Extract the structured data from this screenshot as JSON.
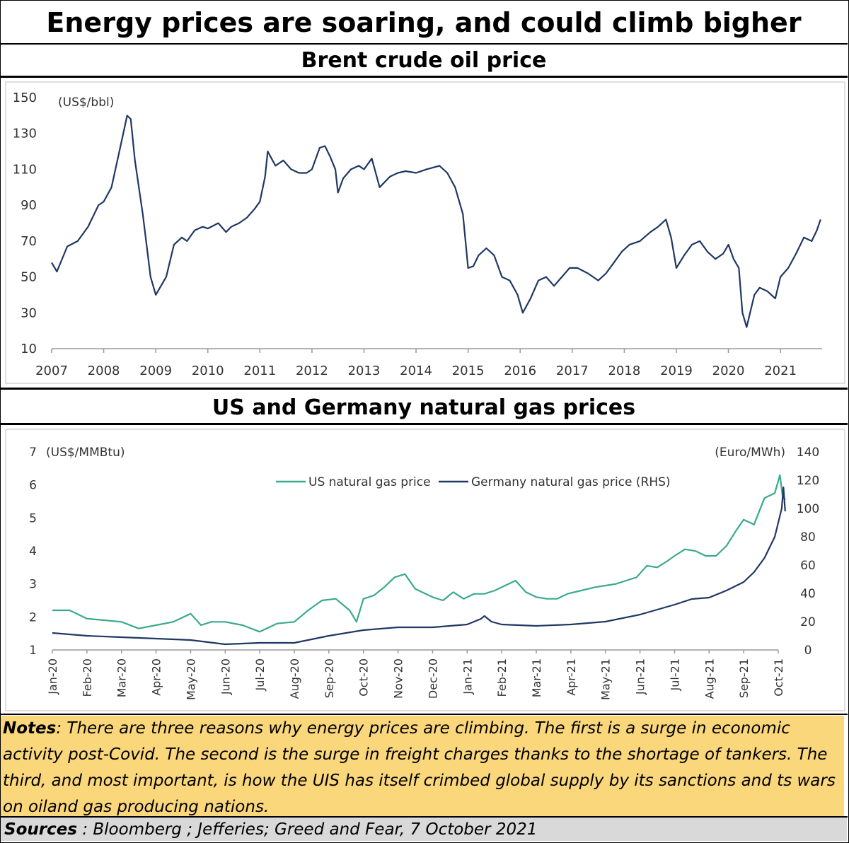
{
  "header": {
    "title": "Energy prices are soaring, and could climb bigher"
  },
  "notes": {
    "label": "Notes",
    "text": ":  There are three reasons why energy prices are climbing.  The first is a surge in economic activity post-Covid. The second is the surge in freight charges thanks to the shortage of tankers.  The third, and most important, is how the UIS has itself crimbed global supply by its sanctions and ts wars on oiland gas  producing nations."
  },
  "sources": {
    "label": "Sources",
    "text": " :   Bloomberg ;   Jefferies; Greed and Fear, 7 October 2021"
  },
  "colors": {
    "navy": "#1f3864",
    "teal": "#3aaa8c",
    "notes_bg": "#fbd77c",
    "sources_bg": "#d9d9d9"
  },
  "chart_data": [
    {
      "type": "line",
      "title": "Brent crude oil price",
      "ylabel": "(US$/bbl)",
      "xlabel": "",
      "ylim": [
        10,
        150
      ],
      "xlim": [
        2007,
        2021.8
      ],
      "yticks": [
        "150",
        "130",
        "110",
        "90",
        "70",
        "50",
        "30",
        "10"
      ],
      "xticks": [
        "2007",
        "2008",
        "2009",
        "2010",
        "2011",
        "2012",
        "2013",
        "2014",
        "2015",
        "2016",
        "2017",
        "2018",
        "2019",
        "2020",
        "2021"
      ],
      "grid": false,
      "series": [
        {
          "color": "#1f3864",
          "x": [
            2007.0,
            2007.1,
            2007.3,
            2007.5,
            2007.7,
            2007.9,
            2008.0,
            2008.15,
            2008.3,
            2008.45,
            2008.52,
            2008.6,
            2008.75,
            2008.9,
            2009.0,
            2009.1,
            2009.2,
            2009.35,
            2009.5,
            2009.6,
            2009.75,
            2009.9,
            2010.0,
            2010.2,
            2010.35,
            2010.45,
            2010.6,
            2010.75,
            2010.9,
            2011.0,
            2011.1,
            2011.15,
            2011.3,
            2011.45,
            2011.6,
            2011.75,
            2011.9,
            2012.0,
            2012.15,
            2012.25,
            2012.35,
            2012.45,
            2012.5,
            2012.6,
            2012.75,
            2012.9,
            2013.0,
            2013.15,
            2013.3,
            2013.5,
            2013.65,
            2013.8,
            2014.0,
            2014.2,
            2014.45,
            2014.6,
            2014.75,
            2014.9,
            2015.0,
            2015.1,
            2015.2,
            2015.35,
            2015.5,
            2015.65,
            2015.8,
            2015.95,
            2016.05,
            2016.2,
            2016.35,
            2016.5,
            2016.65,
            2016.8,
            2016.95,
            2017.1,
            2017.3,
            2017.5,
            2017.65,
            2017.8,
            2017.95,
            2018.1,
            2018.3,
            2018.5,
            2018.65,
            2018.8,
            2018.9,
            2019.0,
            2019.15,
            2019.3,
            2019.45,
            2019.6,
            2019.75,
            2019.9,
            2020.0,
            2020.1,
            2020.2,
            2020.27,
            2020.35,
            2020.5,
            2020.6,
            2020.75,
            2020.9,
            2021.0,
            2021.15,
            2021.3,
            2021.45,
            2021.6,
            2021.7,
            2021.77
          ],
          "y": [
            58,
            53,
            67,
            70,
            78,
            90,
            92,
            100,
            120,
            140,
            138,
            115,
            85,
            50,
            40,
            45,
            50,
            68,
            72,
            70,
            76,
            78,
            77,
            80,
            75,
            78,
            80,
            83,
            88,
            92,
            106,
            120,
            112,
            115,
            110,
            108,
            108,
            110,
            122,
            123,
            117,
            110,
            97,
            105,
            110,
            112,
            110,
            116,
            100,
            106,
            108,
            109,
            108,
            110,
            112,
            108,
            100,
            85,
            55,
            56,
            62,
            66,
            62,
            50,
            48,
            40,
            30,
            38,
            48,
            50,
            45,
            50,
            55,
            55,
            52,
            48,
            52,
            58,
            64,
            68,
            70,
            75,
            78,
            82,
            72,
            55,
            62,
            68,
            70,
            64,
            60,
            63,
            68,
            60,
            55,
            30,
            22,
            40,
            44,
            42,
            38,
            50,
            55,
            63,
            72,
            70,
            76,
            82
          ]
        }
      ]
    },
    {
      "type": "line",
      "title": "US and Germany natural gas prices",
      "ylabel": "(US$/MMBtu)",
      "y2label": "(Euro/MWh)",
      "xlabel": "",
      "ylim": [
        1,
        7
      ],
      "y2lim": [
        0,
        140
      ],
      "yticks": [
        "7",
        "6",
        "5",
        "4",
        "3",
        "2",
        "1"
      ],
      "y2ticks": [
        "140",
        "120",
        "100",
        "80",
        "60",
        "40",
        "20",
        "0"
      ],
      "categories": [
        "Jan-20",
        "Feb-20",
        "Mar-20",
        "Apr-20",
        "May-20",
        "Jun-20",
        "Jul-20",
        "Aug-20",
        "Sep-20",
        "Oct-20",
        "Nov-20",
        "Dec-20",
        "Jan-21",
        "Feb-21",
        "Mar-21",
        "Apr-21",
        "May-21",
        "Jun-21",
        "Jul-21",
        "Aug-21",
        "Sep-21",
        "Oct-21"
      ],
      "grid": false,
      "legend": "top-center",
      "series": [
        {
          "name": "US natural gas price",
          "axis": "left",
          "color": "#3aaa8c",
          "x": [
            0,
            0.5,
            1,
            1.5,
            2,
            2.5,
            3,
            3.5,
            4,
            4.3,
            4.6,
            5,
            5.5,
            6,
            6.5,
            7,
            7.4,
            7.8,
            8.2,
            8.6,
            8.8,
            9,
            9.3,
            9.6,
            9.9,
            10.2,
            10.5,
            10.8,
            11,
            11.3,
            11.6,
            11.9,
            12.2,
            12.5,
            12.8,
            13.1,
            13.4,
            13.7,
            14,
            14.3,
            14.6,
            14.9,
            15.3,
            15.7,
            16,
            16.3,
            16.6,
            16.9,
            17.2,
            17.5,
            17.8,
            18,
            18.3,
            18.6,
            18.9,
            19.2,
            19.5,
            19.8,
            20,
            20.3,
            20.6,
            20.9,
            21.05,
            21.12,
            21.2
          ],
          "y": [
            2.2,
            2.2,
            1.95,
            1.9,
            1.85,
            1.65,
            1.75,
            1.85,
            2.1,
            1.75,
            1.85,
            1.85,
            1.75,
            1.55,
            1.8,
            1.85,
            2.2,
            2.5,
            2.55,
            2.2,
            1.85,
            2.55,
            2.65,
            2.9,
            3.2,
            3.3,
            2.85,
            2.7,
            2.6,
            2.5,
            2.75,
            2.55,
            2.7,
            2.7,
            2.8,
            2.95,
            3.1,
            2.75,
            2.6,
            2.55,
            2.55,
            2.7,
            2.8,
            2.9,
            2.95,
            3.0,
            3.1,
            3.2,
            3.55,
            3.5,
            3.7,
            3.85,
            4.05,
            4.0,
            3.85,
            3.85,
            4.15,
            4.65,
            4.95,
            4.8,
            5.6,
            5.75,
            6.3,
            5.7,
            5.55
          ]
        },
        {
          "name": "Germany natural gas price (RHS)",
          "axis": "right",
          "color": "#1f3864",
          "x": [
            0,
            1,
            2,
            3,
            4,
            5,
            6,
            7,
            8,
            9,
            10,
            11,
            11.5,
            12,
            12.4,
            12.5,
            12.7,
            13,
            14,
            15,
            16,
            17,
            18,
            18.5,
            19,
            19.5,
            20,
            20.3,
            20.6,
            20.9,
            21.1,
            21.15,
            21.2
          ],
          "y": [
            12,
            10,
            9,
            8,
            7,
            4,
            5,
            5,
            10,
            14,
            16,
            16,
            17,
            18,
            22,
            24,
            20,
            18,
            17,
            18,
            20,
            25,
            32,
            36,
            37,
            42,
            48,
            55,
            65,
            80,
            100,
            115,
            98
          ]
        }
      ]
    }
  ]
}
